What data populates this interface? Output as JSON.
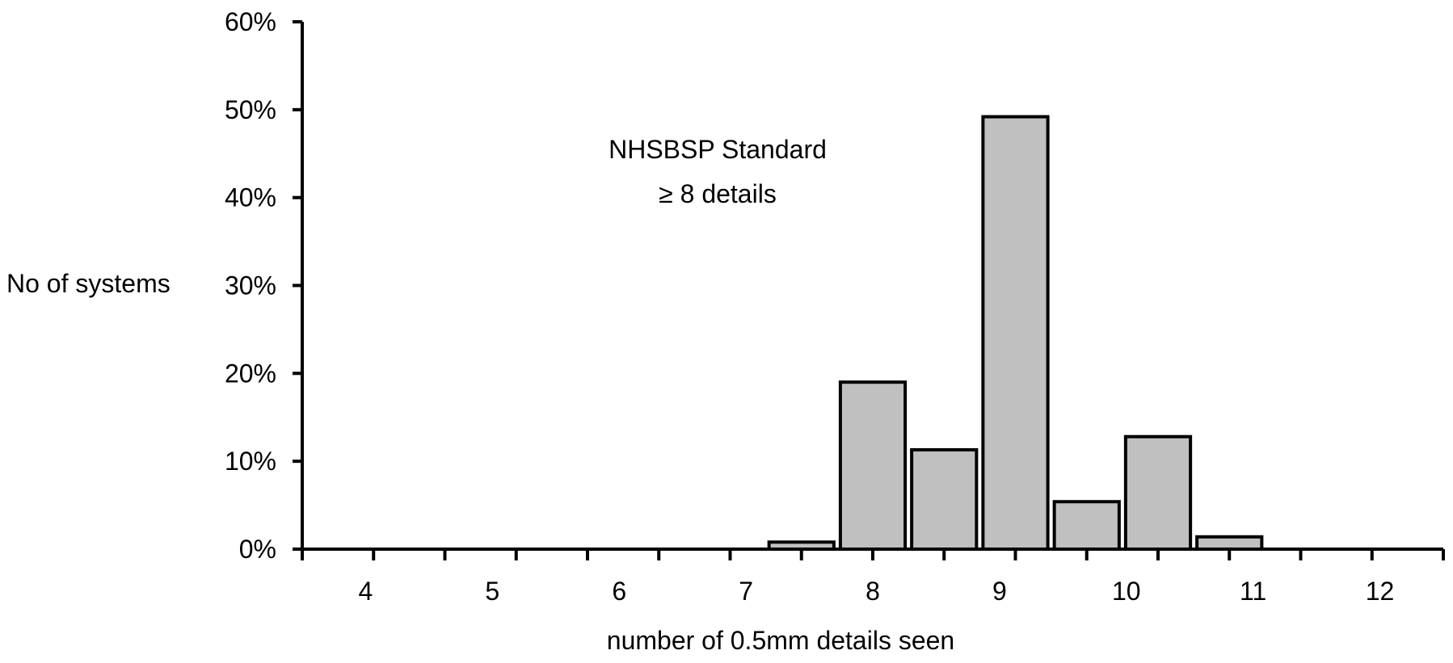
{
  "chart_data": {
    "type": "bar",
    "title": "",
    "xlabel": "number of 0.5mm details seen",
    "ylabel": "No of systems",
    "ylim": [
      0,
      60
    ],
    "xlim": [
      4,
      12
    ],
    "y_ticks": [
      "0%",
      "10%",
      "20%",
      "30%",
      "40%",
      "50%",
      "60%"
    ],
    "x_ticks": [
      "4",
      "5",
      "6",
      "7",
      "8",
      "9",
      "10",
      "11",
      "12"
    ],
    "grid": false,
    "legend": "none",
    "bar_color": "#c0c0c0",
    "bars": [
      {
        "x": 7.5,
        "value": 0.8
      },
      {
        "x": 8.0,
        "value": 19.0
      },
      {
        "x": 8.5,
        "value": 11.3
      },
      {
        "x": 9.0,
        "value": 49.2
      },
      {
        "x": 9.5,
        "value": 5.4
      },
      {
        "x": 10.0,
        "value": 12.8
      },
      {
        "x": 10.5,
        "value": 1.4
      }
    ],
    "annotation": {
      "line1": "NHSBSP Standard",
      "line2": "≥  8 details"
    }
  }
}
